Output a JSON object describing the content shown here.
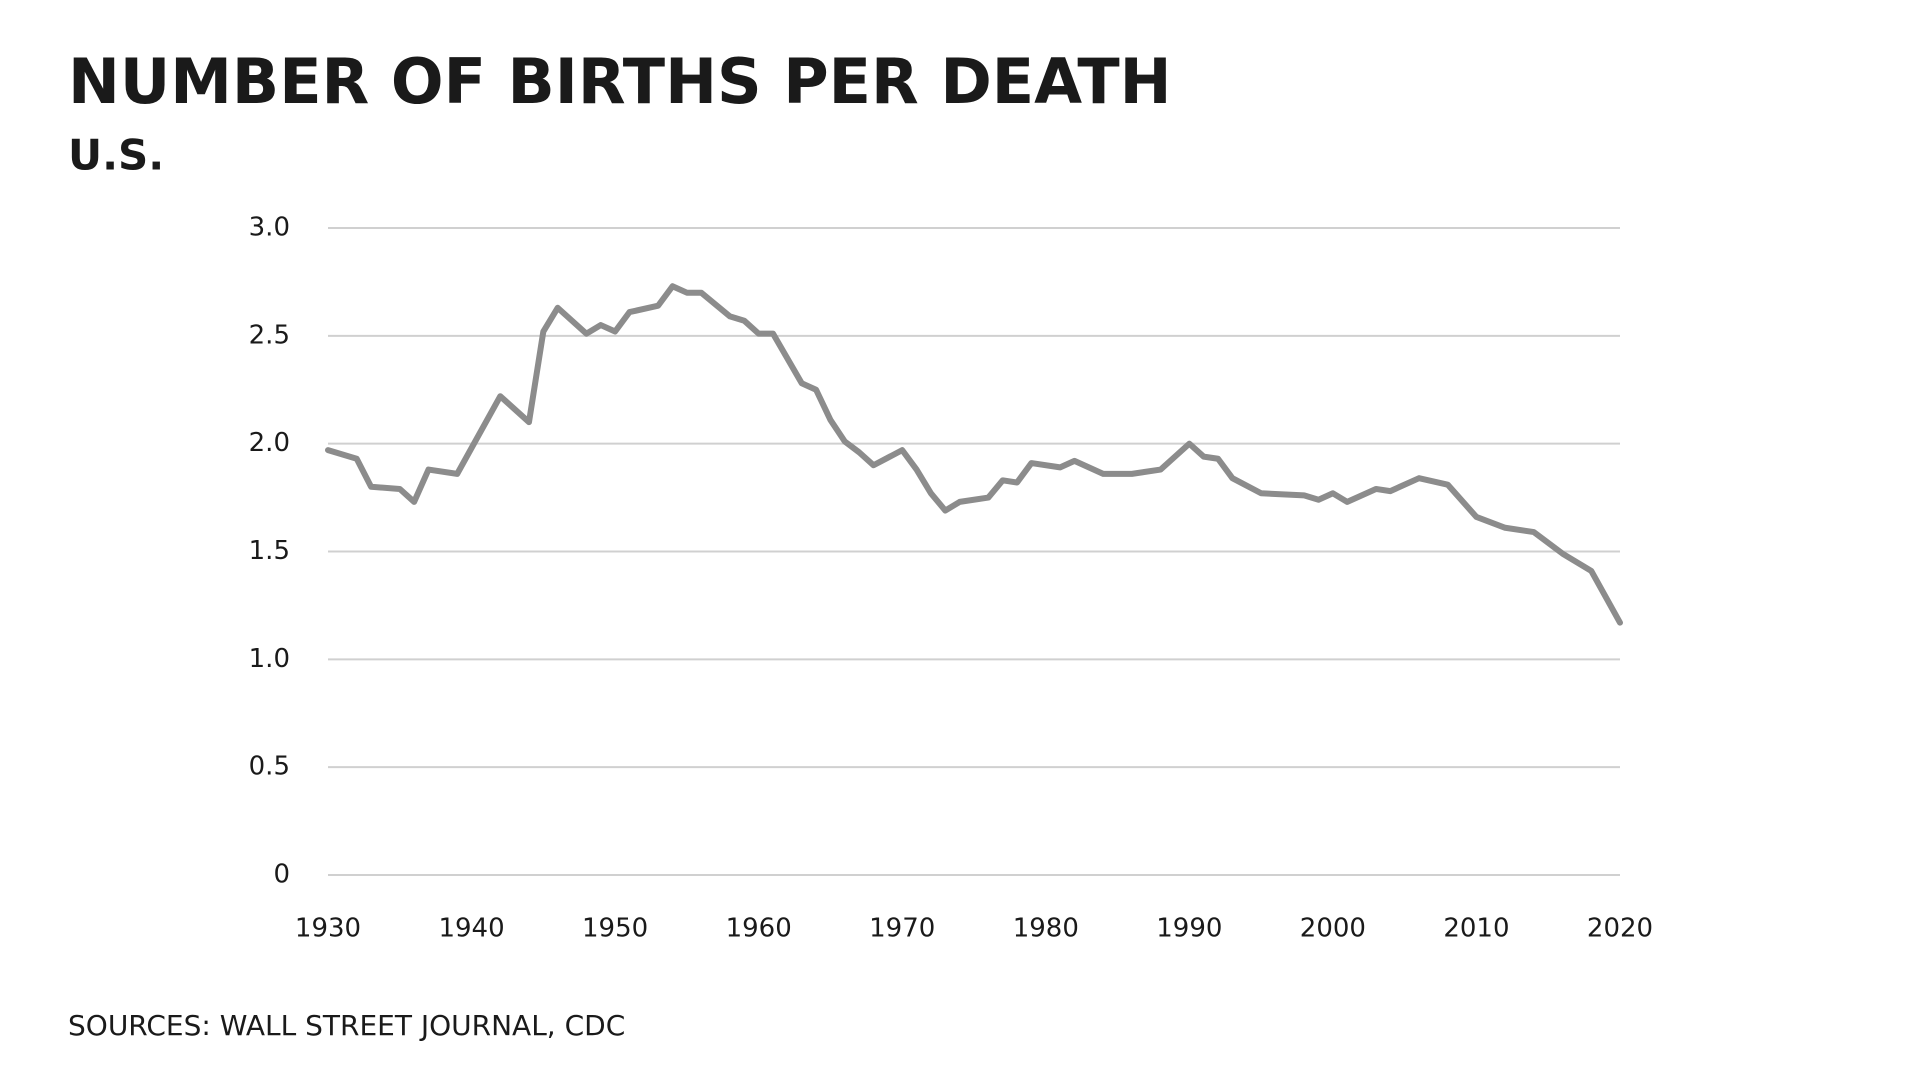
{
  "chart_data": {
    "type": "line",
    "title": "NUMBER OF BIRTHS PER DEATH",
    "subtitle": "U.S.",
    "source": "SOURCES: WALL STREET JOURNAL, CDC",
    "x": [
      1930,
      1932,
      1933,
      1935,
      1936,
      1937,
      1939,
      1942,
      1944,
      1945,
      1946,
      1948,
      1949,
      1950,
      1951,
      1953,
      1954,
      1955,
      1956,
      1958,
      1959,
      1960,
      1961,
      1963,
      1964,
      1965,
      1966,
      1967,
      1968,
      1970,
      1971,
      1972,
      1973,
      1974,
      1976,
      1977,
      1978,
      1979,
      1981,
      1982,
      1984,
      1986,
      1988,
      1990,
      1991,
      1992,
      1993,
      1995,
      1998,
      1999,
      2000,
      2001,
      2003,
      2004,
      2006,
      2008,
      2010,
      2012,
      2014,
      2016,
      2018,
      2020
    ],
    "series": [
      {
        "name": "Births per death",
        "color": "#8c8c8c",
        "values": [
          1.97,
          1.93,
          1.8,
          1.79,
          1.73,
          1.88,
          1.86,
          2.22,
          2.1,
          2.52,
          2.63,
          2.51,
          2.55,
          2.52,
          2.61,
          2.64,
          2.73,
          2.7,
          2.7,
          2.59,
          2.57,
          2.51,
          2.51,
          2.28,
          2.25,
          2.11,
          2.01,
          1.96,
          1.9,
          1.97,
          1.88,
          1.77,
          1.69,
          1.73,
          1.75,
          1.83,
          1.82,
          1.91,
          1.89,
          1.92,
          1.86,
          1.86,
          1.88,
          2.0,
          1.94,
          1.93,
          1.84,
          1.77,
          1.76,
          1.74,
          1.77,
          1.73,
          1.79,
          1.78,
          1.84,
          1.81,
          1.66,
          1.61,
          1.59,
          1.49,
          1.41,
          1.17
        ]
      }
    ],
    "xlim": [
      1930,
      2020
    ],
    "xticks": [
      1930,
      1940,
      1950,
      1960,
      1970,
      1980,
      1990,
      2000,
      2010,
      2020
    ],
    "ylim": [
      0,
      3
    ],
    "yticks": [
      0,
      0.5,
      {
        "value": 1,
        "label": "1.0"
      },
      1.5,
      {
        "value": 2,
        "label": "2.0"
      },
      2.5,
      {
        "value": 3,
        "label": "3.0"
      }
    ],
    "grid": true
  }
}
